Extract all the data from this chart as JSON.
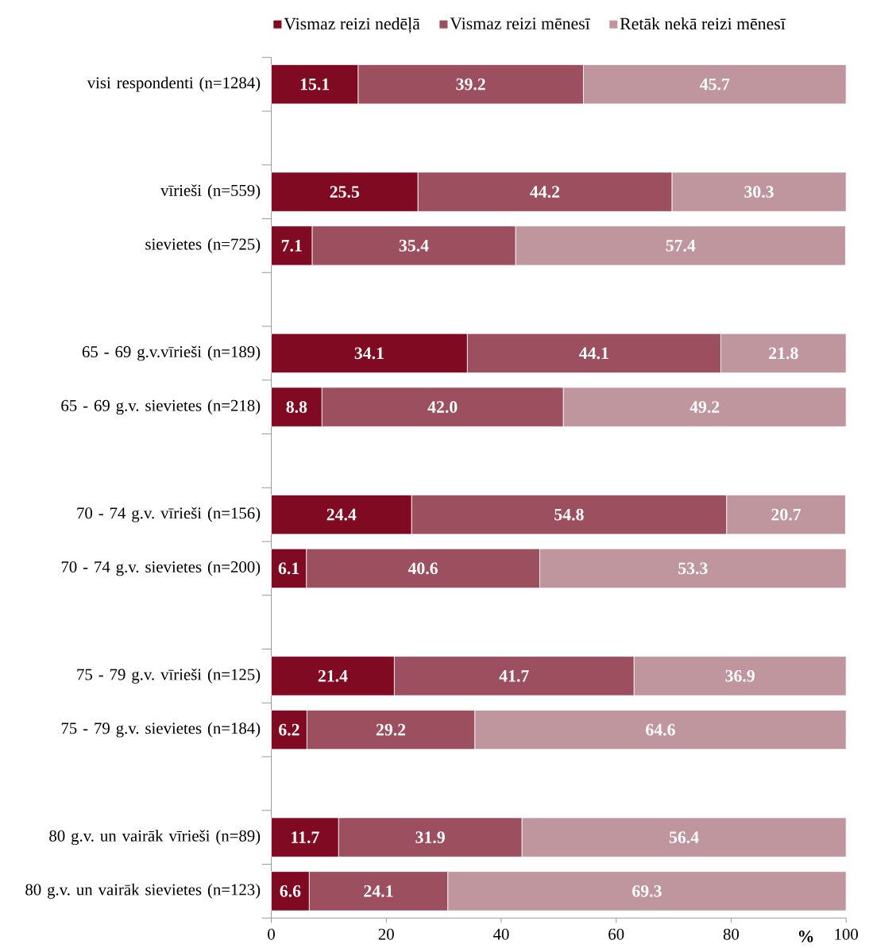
{
  "chart_data": {
    "type": "bar",
    "orientation": "horizontal",
    "stacked": true,
    "legend": "top",
    "xlabel": "%",
    "categories": [
      "visi respondenti (n=1284)",
      null,
      "vīrieši (n=559)",
      "sievietes (n=725)",
      null,
      "65 - 69 g.v.vīrieši (n=189)",
      "65 - 69 g.v. sievietes (n=218)",
      null,
      "70 - 74 g.v. vīrieši (n=156)",
      "70 - 74 g.v. sievietes (n=200)",
      null,
      "75 - 79 g.v. vīrieši (n=125)",
      "75 - 79 g.v. sievietes (n=184)",
      null,
      "80 g.v. un vairāk vīrieši (n=89)",
      "80 g.v. un vairāk sievietes (n=123)"
    ],
    "xlim": [
      0,
      100
    ],
    "xticks": [
      0,
      20,
      40,
      60,
      80,
      100
    ],
    "series": [
      {
        "name": "Vismaz reizi nedēļā",
        "color": "#7f0a22",
        "values": [
          15.1,
          null,
          25.5,
          7.1,
          null,
          34.1,
          8.8,
          null,
          24.4,
          6.1,
          null,
          21.4,
          6.2,
          null,
          11.7,
          6.6
        ],
        "value_labels": [
          "15.1",
          null,
          "25.5",
          "7.1",
          null,
          "34.1",
          "8.8",
          null,
          "24.4",
          "6.1",
          null,
          "21.4",
          "6.2",
          null,
          "11.7",
          "6.6"
        ]
      },
      {
        "name": "Vismaz reizi mēnesī",
        "color": "#9b4f5f",
        "values": [
          39.2,
          null,
          44.2,
          35.4,
          null,
          44.1,
          42.0,
          null,
          54.8,
          40.6,
          null,
          41.7,
          29.2,
          null,
          31.9,
          24.1
        ],
        "value_labels": [
          "39.2",
          null,
          "44.2",
          "35.4",
          null,
          "44.1",
          "42.0",
          null,
          "54.8",
          "40.6",
          null,
          "41.7",
          "29.2",
          null,
          "31.9",
          "24.1"
        ]
      },
      {
        "name": "Retāk nekā reizi mēnesī",
        "color": "#c0969e",
        "values": [
          45.7,
          null,
          30.3,
          57.4,
          null,
          21.8,
          49.2,
          null,
          20.7,
          53.3,
          null,
          36.9,
          64.6,
          null,
          56.4,
          69.3
        ],
        "value_labels": [
          "45.7",
          null,
          "30.3",
          "57.4",
          null,
          "21.8",
          "49.2",
          null,
          "20.7",
          "53.3",
          null,
          "36.9",
          "64.6",
          null,
          "56.4",
          "69.3"
        ]
      }
    ]
  }
}
